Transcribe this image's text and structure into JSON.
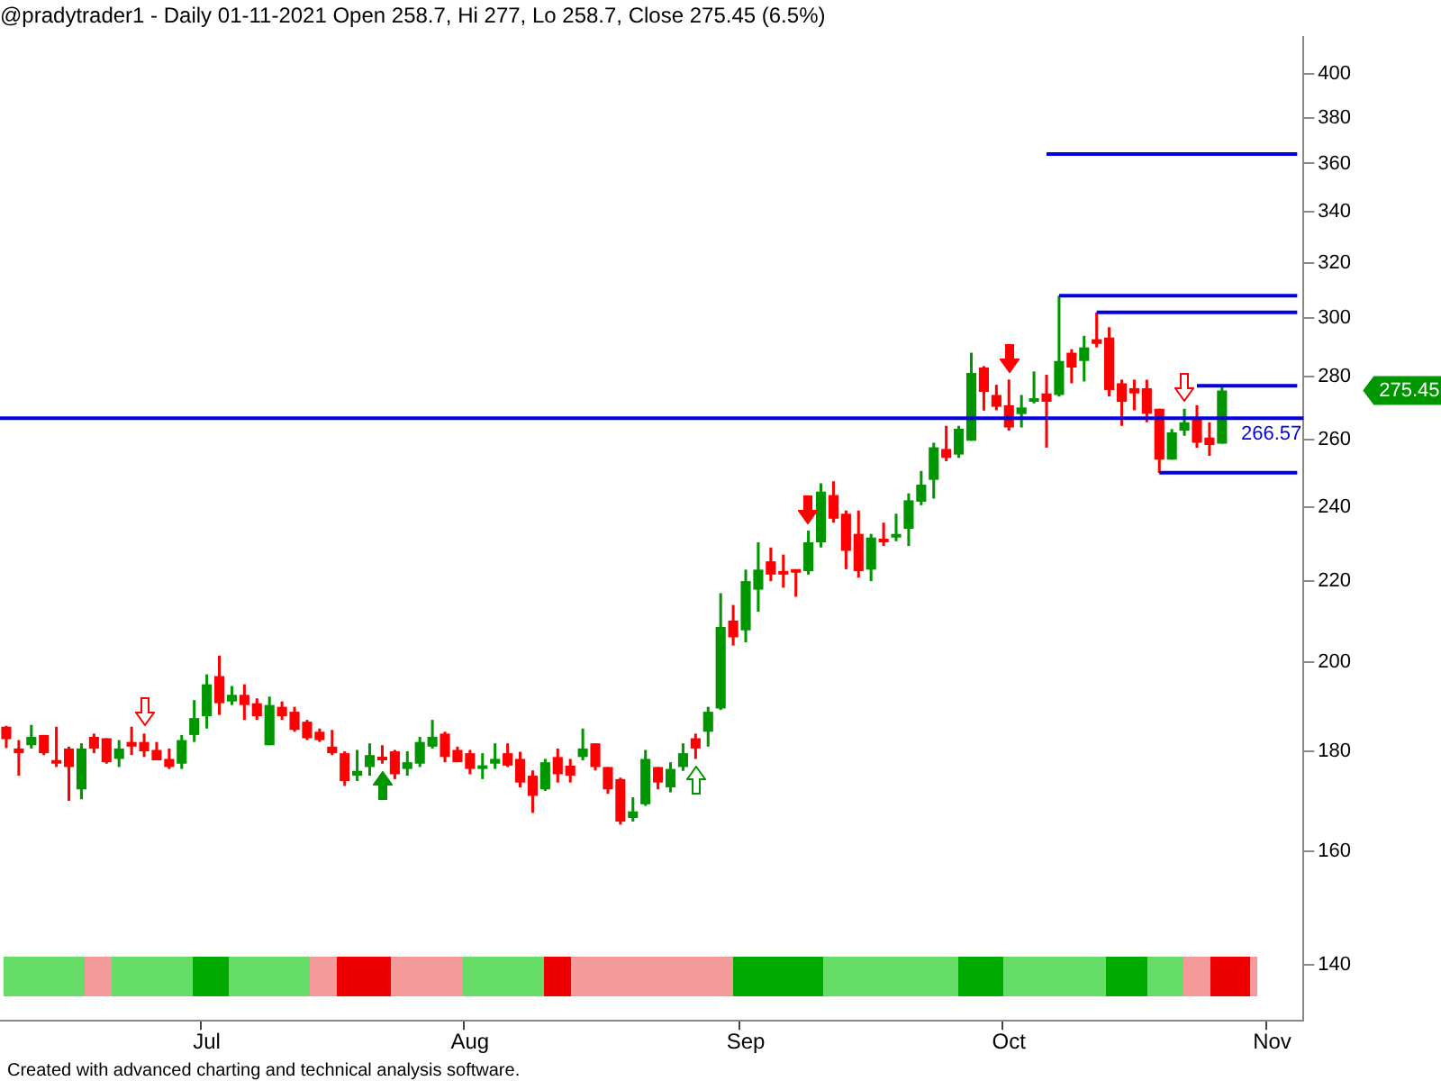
{
  "chart_data": {
    "type": "candlestick",
    "title": "@pradytrader1 - Daily 01-11-2021 Open 258.7, Hi 277, Lo 258.7, Close 275.45 (6.5%)",
    "categories": [
      null,
      null,
      null,
      null,
      null,
      null,
      null,
      null,
      null,
      null,
      null,
      null,
      null,
      null,
      null,
      null,
      "Jul",
      null,
      null,
      null,
      null,
      null,
      null,
      null,
      null,
      null,
      null,
      null,
      null,
      null,
      null,
      null,
      null,
      null,
      null,
      null,
      null,
      "Aug",
      null,
      null,
      null,
      null,
      null,
      null,
      null,
      null,
      null,
      null,
      null,
      null,
      null,
      null,
      null,
      null,
      null,
      null,
      null,
      null,
      null,
      "Sep",
      null,
      null,
      null,
      null,
      null,
      null,
      null,
      null,
      null,
      null,
      null,
      null,
      null,
      null,
      null,
      null,
      null,
      null,
      null,
      null,
      "Oct",
      null,
      null,
      null,
      null,
      null,
      null,
      null,
      null,
      null,
      null,
      null,
      null,
      null,
      null,
      null,
      null,
      null,
      null,
      null,
      null,
      "Nov",
      null,
      null
    ],
    "ohlc": [
      [
        185.3,
        185.5,
        180.7,
        182.6
      ],
      [
        180.6,
        182.4,
        174.9,
        179.6
      ],
      [
        181.3,
        185.7,
        180.6,
        183.1
      ],
      [
        183.5,
        183.5,
        179.2,
        179.6
      ],
      [
        178,
        185.3,
        176.7,
        177.4
      ],
      [
        180.6,
        181,
        169.8,
        176.7
      ],
      [
        172.1,
        181.7,
        170.1,
        180.6
      ],
      [
        183.1,
        183.8,
        179.6,
        180.6
      ],
      [
        182.8,
        182.8,
        177.4,
        177.7
      ],
      [
        178.4,
        182.4,
        176.7,
        180.6
      ],
      [
        182,
        185.3,
        179.2,
        181
      ],
      [
        182,
        183.8,
        178.8,
        180
      ],
      [
        180.3,
        182,
        178.1,
        178.1
      ],
      [
        178.4,
        180.6,
        176.3,
        176.7
      ],
      [
        177.4,
        183.5,
        176.3,
        182.4
      ],
      [
        183.5,
        191.2,
        182,
        187.2
      ],
      [
        187.6,
        197.1,
        184.9,
        194.8
      ],
      [
        196.7,
        201.5,
        187.9,
        190.5
      ],
      [
        190.9,
        194.4,
        190.1,
        192.4
      ],
      [
        192.4,
        194.8,
        186.8,
        190.1
      ],
      [
        190.5,
        191.6,
        186.8,
        187.6
      ],
      [
        181.3,
        192,
        181.3,
        190.1
      ],
      [
        189.7,
        190.9,
        186.8,
        187.6
      ],
      [
        188.6,
        189.7,
        184.2,
        184.6
      ],
      [
        186.4,
        186.8,
        182.4,
        182.8
      ],
      [
        184.2,
        184.9,
        182,
        182.4
      ],
      [
        181,
        184.6,
        179.2,
        179.6
      ],
      [
        179.6,
        180,
        172.8,
        173.8
      ],
      [
        174.9,
        180.3,
        173.8,
        175.9
      ],
      [
        176.7,
        181.7,
        174.9,
        179.2
      ],
      [
        178.8,
        181.3,
        177.4,
        178.1
      ],
      [
        180,
        180.3,
        174.2,
        175.2
      ],
      [
        176.3,
        180,
        174.9,
        177.7
      ],
      [
        177.4,
        183.1,
        176.7,
        182
      ],
      [
        181,
        186.8,
        180.6,
        183.1
      ],
      [
        183.8,
        184.2,
        177.7,
        178.8
      ],
      [
        180.3,
        181,
        177.7,
        177.7
      ],
      [
        179.6,
        180.3,
        175.2,
        176.3
      ],
      [
        176.3,
        179.6,
        174.2,
        177
      ],
      [
        177.4,
        181.7,
        176.3,
        178.4
      ],
      [
        179.6,
        181.7,
        176.7,
        177
      ],
      [
        178.4,
        179.9,
        172.5,
        173.5
      ],
      [
        174.9,
        176,
        167.4,
        170.8
      ],
      [
        172.1,
        178.4,
        171.8,
        177.7
      ],
      [
        178.8,
        180.6,
        173.5,
        175.2
      ],
      [
        177,
        178.4,
        173.5,
        174.9
      ],
      [
        178.8,
        184.9,
        178.1,
        180.6
      ],
      [
        181.7,
        181.7,
        176,
        176.7
      ],
      [
        176.7,
        176.7,
        171.2,
        172.1
      ],
      [
        174.2,
        174.5,
        165.1,
        165.7
      ],
      [
        166.4,
        170.5,
        165.7,
        167.7
      ],
      [
        169.1,
        180.3,
        168.8,
        178.4
      ],
      [
        176.7,
        176.7,
        172.1,
        173.5
      ],
      [
        172.5,
        177.7,
        171.5,
        176.3
      ],
      [
        176.7,
        181.7,
        175.9,
        179.6
      ],
      [
        182.8,
        183.8,
        178.4,
        180.6
      ],
      [
        184.2,
        189.7,
        181,
        188.6
      ],
      [
        189.3,
        216.9,
        189,
        208.4
      ],
      [
        210,
        213.9,
        203.9,
        205.9
      ],
      [
        207.6,
        223,
        204.7,
        220
      ],
      [
        217.8,
        230.3,
        212.2,
        223
      ],
      [
        225.2,
        228.9,
        220,
        221.7
      ],
      [
        222.2,
        227,
        218.3,
        221.7
      ],
      [
        222.6,
        223,
        216,
        222.2
      ],
      [
        222.6,
        233.5,
        221.7,
        230.3
      ],
      [
        230.3,
        246.9,
        228.9,
        244.5
      ],
      [
        243.5,
        247.5,
        235.7,
        236.8
      ],
      [
        238.2,
        239.1,
        223.1,
        228
      ],
      [
        232.6,
        239.1,
        220.9,
        222.6
      ],
      [
        223,
        232.6,
        220,
        231.6
      ],
      [
        231.1,
        235.7,
        229.3,
        230.3
      ],
      [
        231.6,
        238.2,
        230.6,
        232.2
      ],
      [
        234,
        244,
        229.3,
        242
      ],
      [
        241.6,
        250.5,
        240.6,
        246.5
      ],
      [
        247.9,
        259,
        242.5,
        257.6
      ],
      [
        257.1,
        264.2,
        253.4,
        254.4
      ],
      [
        255.4,
        264.2,
        254.4,
        263.3
      ],
      [
        259.6,
        288,
        259.6,
        281.2
      ],
      [
        283,
        283.5,
        269,
        275
      ],
      [
        274,
        277.3,
        269.1,
        270.2
      ],
      [
        270.7,
        279,
        262.7,
        263.7
      ],
      [
        267.9,
        274,
        263.7,
        270
      ],
      [
        271.8,
        281.7,
        271.3,
        272.8
      ],
      [
        274.5,
        280.6,
        257.5,
        271.8
      ],
      [
        274,
        308,
        273.5,
        285.2
      ],
      [
        288,
        289.2,
        277.8,
        283
      ],
      [
        285.2,
        293.8,
        278.4,
        289.8
      ],
      [
        292.6,
        302,
        289.8,
        291
      ],
      [
        293.2,
        296.8,
        273.5,
        275.6
      ],
      [
        277.8,
        279,
        264.2,
        271.8
      ],
      [
        276.2,
        279,
        269.1,
        274.5
      ],
      [
        276.2,
        279,
        265.3,
        268
      ],
      [
        269.6,
        269.6,
        249.9,
        253.9
      ],
      [
        253.9,
        263.2,
        253.9,
        262.2
      ],
      [
        262.7,
        269.6,
        261.1,
        265.3
      ],
      [
        266.8,
        270.7,
        257.5,
        259
      ],
      [
        260.6,
        265.3,
        255,
        258.3
      ],
      [
        258.7,
        277,
        258.7,
        275.45
      ],
      null,
      null,
      null,
      null,
      null,
      null
    ],
    "colors": [
      "#ff0000",
      "#ff0000",
      "#009600",
      "#ff0000",
      "#ff0000",
      "#ff0000",
      "#009600",
      "#ff0000",
      "#ff0000",
      "#009600",
      "#ff0000",
      "#ff0000",
      "#ff0000",
      "#ff0000",
      "#009600",
      "#009600",
      "#009600",
      "#ff0000",
      "#009600",
      "#ff0000",
      "#ff0000",
      "#009600",
      "#ff0000",
      "#ff0000",
      "#ff0000",
      "#ff0000",
      "#ff0000",
      "#ff0000",
      "#009600",
      "#009600",
      "#ff0000",
      "#ff0000",
      "#009600",
      "#009600",
      "#009600",
      "#ff0000",
      "#ff0000",
      "#ff0000",
      "#009600",
      "#009600",
      "#ff0000",
      "#ff0000",
      "#ff0000",
      "#009600",
      "#ff0000",
      "#ff0000",
      "#009600",
      "#ff0000",
      "#ff0000",
      "#ff0000",
      "#009600",
      "#009600",
      "#ff0000",
      "#009600",
      "#009600",
      "#ff0000",
      "#009600",
      "#009600",
      "#ff0000",
      "#009600",
      "#009600",
      "#ff0000",
      "#ff0000",
      "#ff0000",
      "#009600",
      "#009600",
      "#ff0000",
      "#ff0000",
      "#ff0000",
      "#009600",
      "#ff0000",
      "#009600",
      "#009600",
      "#009600",
      "#009600",
      "#ff0000",
      "#009600",
      "#009600",
      "#ff0000",
      "#ff0000",
      "#ff0000",
      "#009600",
      "#009600",
      "#ff0000",
      "#009600",
      "#ff0000",
      "#009600",
      "#ff0000",
      "#ff0000",
      "#ff0000",
      "#ff0000",
      "#ff0000",
      "#ff0000",
      "#009600",
      "#009600",
      "#ff0000",
      "#ff0000",
      "#009600",
      null,
      null,
      null,
      null,
      null,
      null
    ],
    "series": [
      {
        "type": "line",
        "color": "#0000e0",
        "values": [
          null,
          null,
          null,
          null,
          null,
          null,
          null,
          null,
          null,
          null,
          null,
          null,
          null,
          null,
          null,
          null,
          null,
          null,
          null,
          null,
          null,
          null,
          null,
          null,
          null,
          null,
          null,
          null,
          null,
          null,
          null,
          null,
          null,
          null,
          null,
          null,
          null,
          null,
          null,
          null,
          null,
          null,
          null,
          null,
          null,
          null,
          null,
          null,
          null,
          null,
          null,
          null,
          null,
          null,
          null,
          null,
          null,
          null,
          null,
          null,
          null,
          null,
          null,
          null,
          null,
          null,
          null,
          null,
          null,
          null,
          null,
          null,
          null,
          null,
          null,
          null,
          null,
          null,
          null,
          null,
          null,
          null,
          null,
          364,
          364,
          364,
          364,
          364,
          364,
          364,
          364,
          364,
          364,
          364,
          364,
          364,
          364,
          364,
          364,
          364,
          364,
          364,
          364,
          364
        ]
      },
      {
        "type": "line",
        "color": "#0000e0",
        "values": [
          null,
          null,
          null,
          null,
          null,
          null,
          null,
          null,
          null,
          null,
          null,
          null,
          null,
          null,
          null,
          null,
          null,
          null,
          null,
          null,
          null,
          null,
          null,
          null,
          null,
          null,
          null,
          null,
          null,
          null,
          null,
          null,
          null,
          null,
          null,
          null,
          null,
          null,
          null,
          null,
          null,
          null,
          null,
          null,
          null,
          null,
          null,
          null,
          null,
          null,
          null,
          null,
          null,
          null,
          null,
          null,
          null,
          null,
          null,
          null,
          null,
          null,
          null,
          null,
          null,
          null,
          null,
          null,
          null,
          null,
          null,
          null,
          null,
          null,
          null,
          null,
          null,
          null,
          null,
          null,
          null,
          null,
          null,
          null,
          308,
          308,
          308,
          308,
          308,
          308,
          308,
          308,
          308,
          308,
          308,
          308,
          308,
          308,
          308,
          308,
          308,
          308,
          308,
          308
        ]
      },
      {
        "type": "line",
        "color": "#0000e0",
        "values": [
          null,
          null,
          null,
          null,
          null,
          null,
          null,
          null,
          null,
          null,
          null,
          null,
          null,
          null,
          null,
          null,
          null,
          null,
          null,
          null,
          null,
          null,
          null,
          null,
          null,
          null,
          null,
          null,
          null,
          null,
          null,
          null,
          null,
          null,
          null,
          null,
          null,
          null,
          null,
          null,
          null,
          null,
          null,
          null,
          null,
          null,
          null,
          null,
          null,
          null,
          null,
          null,
          null,
          null,
          null,
          null,
          null,
          null,
          null,
          null,
          null,
          null,
          null,
          null,
          null,
          null,
          null,
          null,
          null,
          null,
          null,
          null,
          null,
          null,
          null,
          null,
          null,
          null,
          null,
          null,
          null,
          null,
          null,
          null,
          null,
          null,
          null,
          302,
          302,
          302,
          302,
          302,
          302,
          302,
          302,
          302,
          302,
          302,
          302,
          302,
          302,
          302,
          302,
          302
        ]
      },
      {
        "type": "line",
        "color": "#0000e0",
        "values": [
          null,
          null,
          null,
          null,
          null,
          null,
          null,
          null,
          null,
          null,
          null,
          null,
          null,
          null,
          null,
          null,
          null,
          null,
          null,
          null,
          null,
          null,
          null,
          null,
          null,
          null,
          null,
          null,
          null,
          null,
          null,
          null,
          null,
          null,
          null,
          null,
          null,
          null,
          null,
          null,
          null,
          null,
          null,
          null,
          null,
          null,
          null,
          null,
          null,
          null,
          null,
          null,
          null,
          null,
          null,
          null,
          null,
          null,
          null,
          null,
          null,
          null,
          null,
          null,
          null,
          null,
          null,
          null,
          null,
          null,
          null,
          null,
          null,
          null,
          null,
          null,
          null,
          null,
          null,
          null,
          null,
          null,
          null,
          null,
          null,
          null,
          null,
          null,
          null,
          null,
          null,
          null,
          null,
          null,
          null,
          277,
          277,
          277,
          277,
          277,
          277,
          277,
          277,
          277
        ]
      },
      {
        "type": "line",
        "color": "#0000e0",
        "values": [
          null,
          null,
          null,
          null,
          null,
          null,
          null,
          null,
          null,
          null,
          null,
          null,
          null,
          null,
          null,
          null,
          null,
          null,
          null,
          null,
          null,
          null,
          null,
          null,
          null,
          null,
          null,
          null,
          null,
          null,
          null,
          null,
          null,
          null,
          null,
          null,
          null,
          null,
          null,
          null,
          null,
          null,
          null,
          null,
          null,
          null,
          null,
          null,
          null,
          null,
          null,
          null,
          null,
          null,
          null,
          null,
          null,
          null,
          null,
          null,
          null,
          null,
          null,
          null,
          null,
          null,
          null,
          null,
          null,
          null,
          null,
          null,
          null,
          null,
          null,
          null,
          null,
          null,
          null,
          null,
          null,
          null,
          null,
          null,
          null,
          null,
          null,
          null,
          null,
          null,
          null,
          null,
          250,
          250,
          250,
          250,
          250,
          250,
          250,
          250,
          250,
          250,
          250,
          250
        ]
      }
    ],
    "ref_lines": [
      {
        "axis": "y",
        "value": 266.57,
        "label": "266.57",
        "color": "#0000e0"
      }
    ],
    "annotations": [
      "275.45",
      "Created with advanced charting and technical analysis software."
    ],
    "log": true,
    "ylim": [
      131,
      418
    ],
    "yticks": [
      140,
      160,
      180,
      200,
      220,
      240,
      260,
      280,
      300,
      320,
      340,
      360,
      380,
      400
    ],
    "grid": false
  }
}
